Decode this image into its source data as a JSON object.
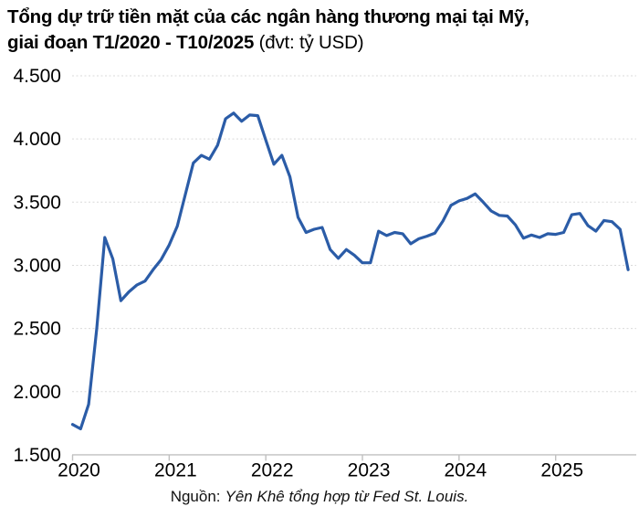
{
  "title": {
    "line1_bold": "Tổng dự trữ tiền mặt của các ngân hàng thương mại tại Mỹ,",
    "line2_bold": "giai đoạn T1/2020 - T10/2025",
    "line2_regular": "(đvt: tỷ USD)"
  },
  "source": {
    "prefix": "Nguồn:",
    "text": "Yên Khê tổng hợp từ Fed St. Louis."
  },
  "chart_data": {
    "type": "line",
    "title": "Tổng dự trữ tiền mặt của các ngân hàng thương mại tại Mỹ, giai đoạn T1/2020 - T10/2025",
    "unit": "tỷ USD",
    "frequency": "monthly",
    "period_start": "T1/2020",
    "period_end": "T10/2025",
    "x_tick_labels": [
      "2020",
      "2021",
      "2022",
      "2023",
      "2024",
      "2025"
    ],
    "y_tick_labels": [
      "1.500",
      "2.000",
      "2.500",
      "3.000",
      "3.500",
      "4.000",
      "4.500"
    ],
    "y_tick_values": [
      1500,
      2000,
      2500,
      3000,
      3500,
      4000,
      4500
    ],
    "ylim": [
      1500,
      4500
    ],
    "grid": "horizontal dashed",
    "legend": "none",
    "line_color": "#2b5ca7",
    "grid_color": "#d9d9d9",
    "axis_color": "#c0c0c0",
    "series": [
      {
        "name": "Tổng dự trữ tiền mặt của các ngân hàng thương mại tại Mỹ (tỷ USD)",
        "values": [
          1740,
          1705,
          1900,
          2500,
          3220,
          3050,
          2720,
          2790,
          2845,
          2875,
          2965,
          3045,
          3160,
          3310,
          3560,
          3810,
          3870,
          3840,
          3950,
          4160,
          4205,
          4140,
          4190,
          4185,
          3990,
          3800,
          3870,
          3700,
          3380,
          3260,
          3285,
          3300,
          3125,
          3055,
          3125,
          3080,
          3020,
          3020,
          3270,
          3235,
          3260,
          3250,
          3170,
          3210,
          3230,
          3255,
          3350,
          3475,
          3510,
          3530,
          3565,
          3500,
          3430,
          3395,
          3390,
          3320,
          3215,
          3240,
          3220,
          3250,
          3245,
          3260,
          3400,
          3410,
          3315,
          3270,
          3355,
          3345,
          3285,
          2965
        ]
      }
    ]
  }
}
